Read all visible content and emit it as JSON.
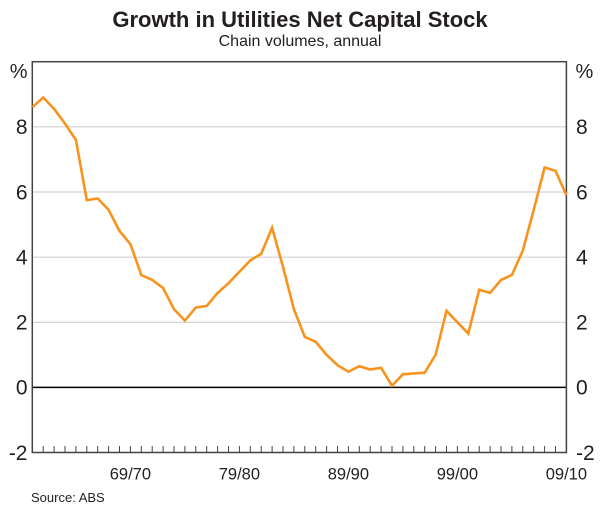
{
  "title": "Growth in Utilities Net Capital Stock",
  "subtitle": "Chain volumes, annual",
  "source": "Source: ABS",
  "chart_data": {
    "type": "line",
    "title": "Growth in Utilities Net Capital Stock",
    "subtitle": "Chain volumes, annual",
    "unit_label": "%",
    "n_points": 50,
    "x_tick_labels": [
      "69/70",
      "79/80",
      "89/90",
      "99/00",
      "09/10"
    ],
    "x_tick_indices": [
      9,
      19,
      29,
      39,
      49
    ],
    "values": [
      8.6,
      8.9,
      8.55,
      8.1,
      7.6,
      5.75,
      5.8,
      5.45,
      4.8,
      4.4,
      3.45,
      3.3,
      3.05,
      2.4,
      2.05,
      2.45,
      2.5,
      2.9,
      3.2,
      3.55,
      3.9,
      4.1,
      4.9,
      3.7,
      2.4,
      1.55,
      1.4,
      1.0,
      0.68,
      0.48,
      0.65,
      0.55,
      0.6,
      0.05,
      0.4,
      0.43,
      0.45,
      1.0,
      2.35,
      2.0,
      1.65,
      3.0,
      2.9,
      3.3,
      3.45,
      4.2,
      5.45,
      6.75,
      6.65,
      5.9
    ],
    "y_ticks": [
      -2,
      0,
      2,
      4,
      6,
      8
    ],
    "ylim": [
      -2,
      10
    ],
    "grid": true,
    "legend": false,
    "colors": {
      "line": "#F7941E",
      "grid": "#CBCBCB",
      "zero_line": "#000000",
      "frame": "#434345",
      "text": "#231F20"
    }
  }
}
